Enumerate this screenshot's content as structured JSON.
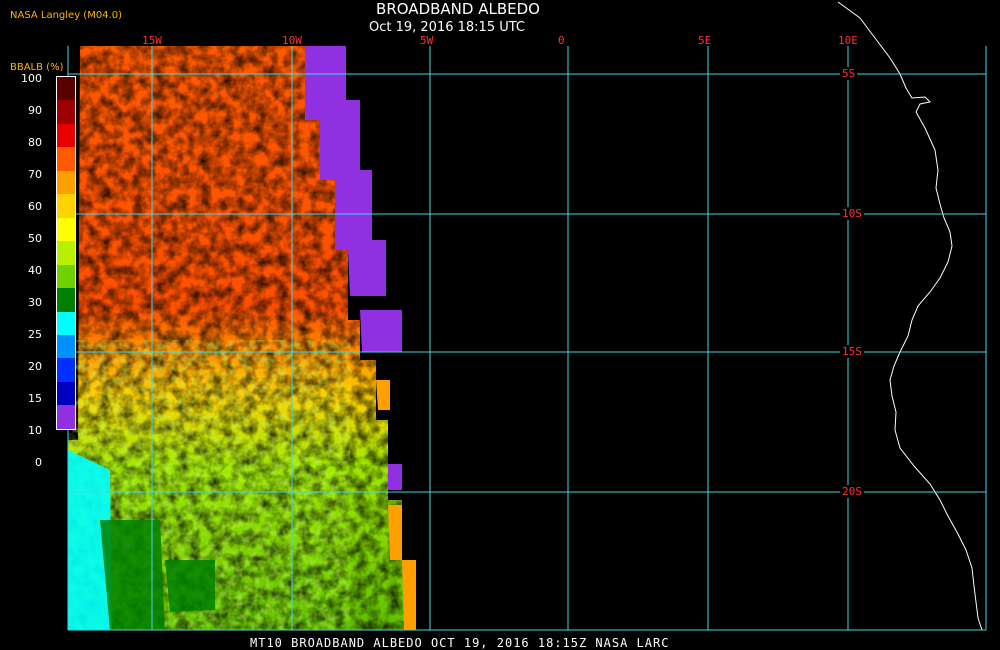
{
  "header": {
    "title": "BROADBAND ALBEDO",
    "subtitle": "Oct 19, 2016 18:15 UTC",
    "agency": "NASA Langley (M04.0)"
  },
  "legend": {
    "unit_label": "BBALB (%)",
    "ticks": [
      "100",
      "90",
      "80",
      "70",
      "60",
      "50",
      "40",
      "30",
      "25",
      "20",
      "15",
      "10",
      "0"
    ],
    "colors": [
      "#5a0000",
      "#9c0000",
      "#e80000",
      "#ff5a00",
      "#ffa000",
      "#ffd200",
      "#ffff00",
      "#b8f000",
      "#70d000",
      "#008000",
      "#00ffff",
      "#0090ff",
      "#0030ff",
      "#0000c0",
      "#9030e0"
    ]
  },
  "map": {
    "longitude_labels": [
      "15W",
      "10W",
      "5W",
      "0",
      "5E",
      "10E"
    ],
    "latitude_labels": [
      "5S",
      "10S",
      "15S",
      "20S"
    ],
    "grid_color": "#40d8e0",
    "coastline_color": "#ffffff"
  },
  "footer": {
    "text": "MT10   BROADBAND ALBEDO   OCT 19, 2016 18:15Z   NASA LARC"
  }
}
